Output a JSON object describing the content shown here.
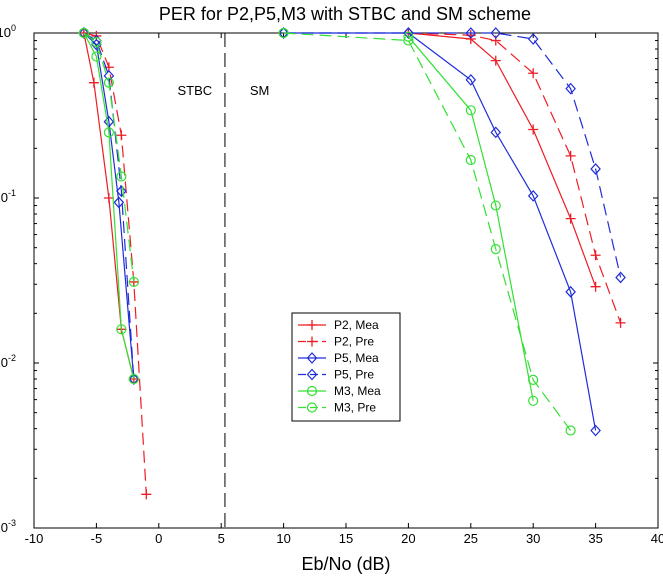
{
  "chart_data": {
    "type": "line",
    "title": "PER for P2,P5,M3 with STBC and SM scheme",
    "xlabel": "Eb/No (dB)",
    "ylabel": "",
    "xlim": [
      -10,
      40
    ],
    "ylim": [
      0.001,
      1
    ],
    "yscale": "log",
    "grid": false,
    "legend_position": "center",
    "x_ticks": [
      -10,
      -5,
      0,
      5,
      10,
      15,
      20,
      25,
      30,
      35,
      40
    ],
    "x_tick_labels": [
      "-10",
      "-5",
      "0",
      "5",
      "10",
      "15",
      "20",
      "25",
      "30",
      "35",
      "40"
    ],
    "y_ticks": [
      0.001,
      0.01,
      0.1,
      1
    ],
    "y_tick_labels": [
      {
        "base": "10",
        "exp": "-3"
      },
      {
        "base": "10",
        "exp": "-2"
      },
      {
        "base": "10",
        "exp": "-1"
      },
      {
        "base": "10",
        "exp": "0"
      }
    ],
    "annotations": [
      {
        "text": "STBC",
        "x": 1.5,
        "y": 0.42
      },
      {
        "text": "SM",
        "x": 7.3,
        "y": 0.42
      }
    ],
    "divider_x": 5.3,
    "series": [
      {
        "name": "P2, Mea",
        "color": "#ee1c24",
        "dash": "solid",
        "marker": "plus",
        "x": [
          -6,
          -5.2,
          -4,
          -3,
          -2,
          20,
          25,
          27,
          30,
          33,
          35
        ],
        "y": [
          1.0,
          0.5,
          0.1,
          0.016,
          0.008,
          1.0,
          0.92,
          0.68,
          0.26,
          0.075,
          0.029
        ]
      },
      {
        "name": "P2, Pre",
        "color": "#ee1c24",
        "dash": "dashed",
        "marker": "plus",
        "x": [
          -6,
          -5,
          -4,
          -3,
          -2,
          -1,
          20,
          25,
          27,
          30,
          33,
          35,
          37
        ],
        "y": [
          1.0,
          0.96,
          0.62,
          0.24,
          0.031,
          0.0016,
          1.0,
          0.97,
          0.9,
          0.57,
          0.18,
          0.045,
          0.0175
        ]
      },
      {
        "name": "P5, Mea",
        "color": "#1f2dd8",
        "dash": "solid",
        "marker": "diamond",
        "x": [
          -6,
          -5,
          -4,
          -3.2,
          -2,
          10,
          20,
          25,
          27,
          30,
          33,
          35
        ],
        "y": [
          1.0,
          0.85,
          0.29,
          0.094,
          0.008,
          1.0,
          1.0,
          0.52,
          0.25,
          0.103,
          0.027,
          0.0039
        ]
      },
      {
        "name": "P5, Pre",
        "color": "#1f2dd8",
        "dash": "dashed",
        "marker": "diamond",
        "x": [
          -6,
          -5,
          -4,
          -3,
          -2,
          10,
          20,
          25,
          27,
          30,
          33,
          35,
          37
        ],
        "y": [
          1.0,
          0.9,
          0.55,
          0.11,
          0.008,
          1.0,
          1.0,
          1.0,
          1.0,
          0.92,
          0.46,
          0.15,
          0.033
        ]
      },
      {
        "name": "M3, Mea",
        "color": "#33e033",
        "dash": "solid",
        "marker": "circle",
        "x": [
          -6,
          -5,
          -4,
          -3,
          -2,
          20,
          25,
          27,
          30
        ],
        "y": [
          1.0,
          0.72,
          0.25,
          0.016,
          0.008,
          0.95,
          0.34,
          0.09,
          0.0059
        ]
      },
      {
        "name": "M3, Pre",
        "color": "#33e033",
        "dash": "dashed",
        "marker": "circle",
        "x": [
          -6,
          -5,
          -4,
          -3,
          -2,
          10,
          20,
          25,
          27,
          30,
          33
        ],
        "y": [
          1.0,
          0.88,
          0.5,
          0.135,
          0.031,
          1.0,
          0.9,
          0.17,
          0.049,
          0.0079,
          0.0039
        ]
      }
    ]
  }
}
